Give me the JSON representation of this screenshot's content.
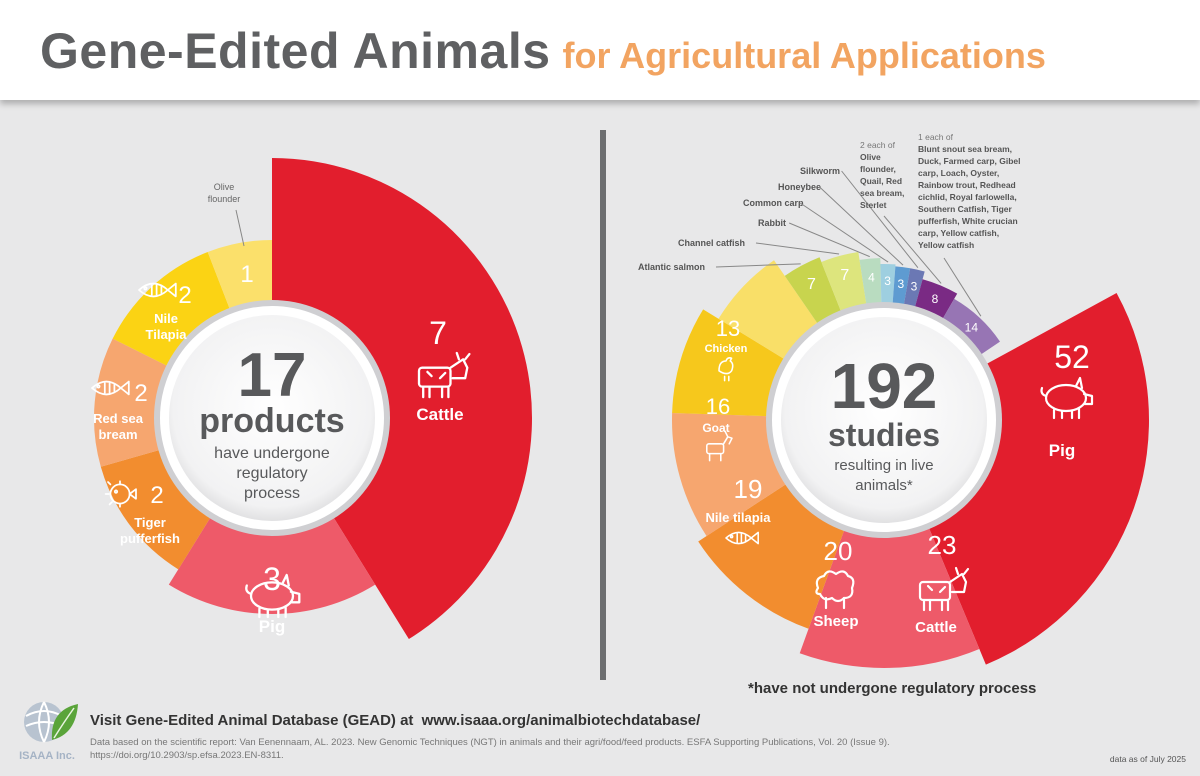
{
  "header": {
    "title_main": "Gene-Edited Animals",
    "title_sub": "for Agricultural Applications"
  },
  "left_center": {
    "number": "17",
    "word": "products",
    "line1": "have undergone",
    "line2": "regulatory",
    "line3": "process"
  },
  "right_center": {
    "number": "192",
    "word": "studies",
    "line1": "resulting in live",
    "line2": "animals*"
  },
  "chart_data": [
    {
      "type": "pie",
      "values": [
        7,
        3,
        2,
        2,
        2,
        1
      ],
      "categories": [
        "Cattle",
        "Pig",
        "Tiger pufferfish",
        "Red sea bream",
        "Nile Tilapia",
        "Olive flounder"
      ],
      "colors": [
        "#e21e2d",
        "#ee5a69",
        "#f28d2f",
        "#f6a66f",
        "#fbd314",
        "#fbe06b"
      ],
      "icons": [
        "cow-icon",
        "pig-icon",
        "pufferfish-icon",
        "fish-icon",
        "tilapia-icon",
        ""
      ]
    },
    {
      "type": "pie",
      "values": [
        52,
        23,
        20,
        19,
        16,
        13,
        7,
        7,
        4,
        3,
        3,
        3,
        8,
        14
      ],
      "categories": [
        "Pig",
        "Cattle",
        "Sheep",
        "Nile tilapia",
        "Goat",
        "Chicken",
        "Atlantic salmon",
        "Channel catfish",
        "Rabbit",
        "Common carp",
        "Honeybee",
        "Silkworm",
        "2 each of",
        "1 each of"
      ],
      "colors": [
        "#e21e2d",
        "#ee5a69",
        "#f28d2f",
        "#f6a66f",
        "#f6c81c",
        "#f9df68",
        "#c8d44e",
        "#dde57d",
        "#b9dcc0",
        "#9ecfe0",
        "#5e9bd1",
        "#6b78b4",
        "#7a2a84",
        "#9775b4"
      ],
      "icons": [
        "pig-icon",
        "cow-icon",
        "sheep-icon",
        "tilapia-icon",
        "goat-icon",
        "chicken-icon",
        "",
        "",
        "",
        "",
        "",
        "",
        "",
        ""
      ],
      "group_labels": {
        "two_each_items": "Olive flounder, Quail, Red sea bream, Sterlet",
        "one_each_items": "Blunt snout sea bream, Duck, Farmed carp, Gibel carp, Loach, Oyster, Rainbow trout, Redhead cichlid, Royal farlowella, Southern Catfish, Tiger pufferfish, White crucian carp, Yellow catfish, Yellow catfish"
      }
    }
  ],
  "footnote": "*have not undergone regulatory process",
  "footer": {
    "visit_text": "Visit  Gene-Edited Animal Database (GEAD) at",
    "url": "www.isaaa.org/animalbiotechdatabase/",
    "source": "Data based on the scientific report: Van Eenennaam, AL. 2023. New Genomic Techniques (NGT) in animals and their agri/food/feed products. ESFA Supporting Publications, Vol. 20 (Issue 9). https://doi.org/10.2903/sp.efsa.2023.EN-8311.",
    "data_date": "data as of July 2025",
    "logo_text": "ISAAA Inc."
  }
}
